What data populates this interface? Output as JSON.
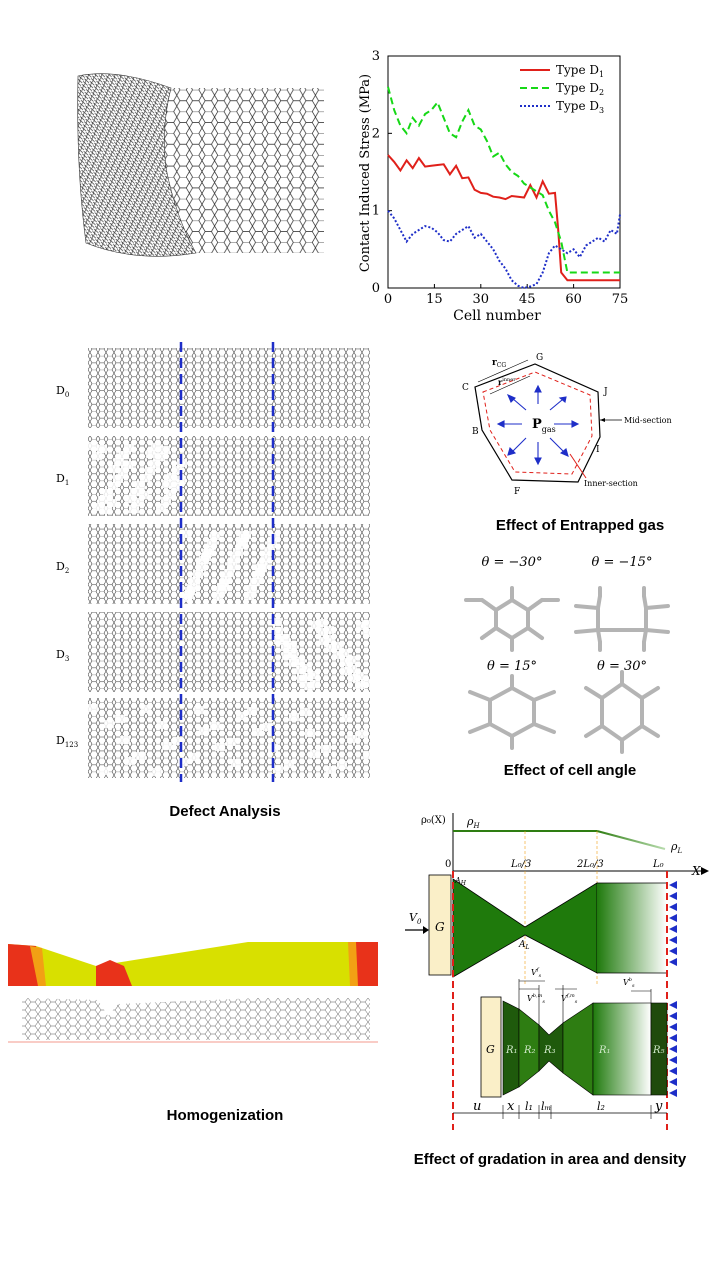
{
  "colors": {
    "green": "#2e7d12",
    "dark_green": "#1f5a0c",
    "red": "#e0201a",
    "blue": "#1e2ec8",
    "lime": "#16d816",
    "yellow": "#d8e000",
    "orange_red": "#e8321a",
    "sand": "#faefc8"
  },
  "captions": {
    "entrapped_gas": "Effect of Entrapped gas",
    "cell_angle": "Effect of cell angle",
    "defect": "Defect Analysis",
    "homogenization": "Homogenization",
    "gradation": "Effect of gradation in area and density"
  },
  "chart_data": {
    "type": "line",
    "title": "",
    "xlabel": "Cell number",
    "ylabel": "Contact Induced Stress (MPa)",
    "xlim": [
      0,
      75
    ],
    "ylim": [
      0,
      3
    ],
    "xticks": [
      "0",
      "15",
      "30",
      "45",
      "60",
      "75"
    ],
    "yticks": [
      "0",
      "1",
      "2",
      "3"
    ],
    "legend_position": "top-right",
    "series": [
      {
        "name": "Type D",
        "sub": "1",
        "style": "solid",
        "color": "#e0201a",
        "x": [
          0,
          2,
          4,
          6,
          8,
          10,
          12,
          14,
          16,
          18,
          20,
          22,
          24,
          26,
          28,
          30,
          32,
          34,
          36,
          38,
          40,
          42,
          44,
          46,
          48,
          50,
          52,
          54,
          55,
          56,
          58,
          60,
          62,
          65,
          70,
          75
        ],
        "y": [
          1.75,
          1.6,
          1.55,
          1.62,
          1.58,
          1.65,
          1.6,
          1.55,
          1.62,
          1.57,
          1.5,
          1.55,
          1.45,
          1.4,
          1.3,
          1.2,
          1.25,
          1.15,
          1.2,
          1.12,
          1.22,
          1.15,
          1.2,
          1.3,
          1.2,
          1.35,
          1.25,
          1.2,
          0.8,
          0.2,
          0.1,
          0.1,
          0.1,
          0.1,
          0.1,
          0.1
        ]
      },
      {
        "name": "Type D",
        "sub": "2",
        "style": "dashed",
        "color": "#16d816",
        "x": [
          0,
          2,
          4,
          6,
          8,
          10,
          12,
          14,
          16,
          18,
          20,
          22,
          24,
          26,
          28,
          30,
          32,
          34,
          36,
          38,
          40,
          42,
          44,
          46,
          48,
          50,
          52,
          54,
          56,
          58,
          60,
          62,
          65,
          70,
          75
        ],
        "y": [
          2.6,
          2.3,
          2.1,
          2.0,
          2.2,
          2.1,
          2.25,
          2.3,
          2.4,
          2.2,
          2.0,
          1.95,
          2.15,
          2.3,
          2.1,
          2.05,
          1.9,
          1.7,
          1.75,
          1.6,
          1.5,
          1.45,
          1.35,
          1.3,
          1.25,
          1.2,
          1.0,
          0.85,
          0.6,
          0.2,
          0.2,
          0.2,
          0.2,
          0.2,
          0.2
        ]
      },
      {
        "name": "Type D",
        "sub": "3",
        "style": "dotted",
        "color": "#1e2ec8",
        "x": [
          0,
          2,
          4,
          6,
          8,
          10,
          12,
          14,
          16,
          18,
          20,
          22,
          24,
          26,
          28,
          30,
          32,
          34,
          36,
          38,
          40,
          42,
          44,
          46,
          48,
          50,
          52,
          54,
          56,
          58,
          60,
          62,
          64,
          66,
          68,
          70,
          72,
          74,
          75
        ],
        "y": [
          1.0,
          0.9,
          0.75,
          0.6,
          0.7,
          0.75,
          0.8,
          0.78,
          0.72,
          0.62,
          0.6,
          0.7,
          0.75,
          0.8,
          0.65,
          0.7,
          0.6,
          0.5,
          0.35,
          0.25,
          0.1,
          0.03,
          0.0,
          0.02,
          0.05,
          0.2,
          0.45,
          0.55,
          0.5,
          0.45,
          0.5,
          0.4,
          0.55,
          0.6,
          0.65,
          0.6,
          0.75,
          0.7,
          0.95
        ]
      }
    ]
  },
  "defect_rows": [
    {
      "label": "D",
      "sub": "0"
    },
    {
      "label": "D",
      "sub": "1"
    },
    {
      "label": "D",
      "sub": "2"
    },
    {
      "label": "D",
      "sub": "3"
    },
    {
      "label": "D",
      "sub": "123"
    }
  ],
  "gas": {
    "labels": [
      "C",
      "G",
      "J",
      "B",
      "I",
      "F"
    ],
    "p_label": "P",
    "p_sub": "gas",
    "r_label": "r",
    "r_sub": "CG",
    "r_inner_sup": "inner",
    "mid": "Mid-section",
    "inner": "Inner-section"
  },
  "angles": [
    {
      "text": "θ = −30°"
    },
    {
      "text": "θ = −15°"
    },
    {
      "text": "θ = 15°"
    },
    {
      "text": "θ = 30°"
    }
  ],
  "gradation": {
    "rho_axis": "ρ₀(X)",
    "rho_H": "ρ",
    "rho_H_sub": "H",
    "rho_L": "ρ",
    "rho_L_sub": "L",
    "x_axis": "X",
    "x_ticks": [
      "0",
      "L₀/3",
      "2L₀/3",
      "L₀"
    ],
    "A_H": "A",
    "A_H_sub": "H",
    "A_L": "A",
    "A_L_sub": "L",
    "V0": "V",
    "V0_sub": "0",
    "G": "G",
    "regions": [
      "R₁",
      "R₂",
      "R₃",
      "R₁",
      "R₅"
    ],
    "vs": [
      {
        "t": "V",
        "sup": "f",
        "sub": "s"
      },
      {
        "t": "V",
        "sup": "b,m",
        "sub": "s"
      },
      {
        "t": "V",
        "sup": "f,m",
        "sub": "s"
      },
      {
        "t": "V",
        "sup": "b",
        "sub": "s"
      }
    ],
    "dims": [
      "u",
      "x",
      "l₁",
      "lₘ",
      "l₂",
      "y"
    ]
  }
}
